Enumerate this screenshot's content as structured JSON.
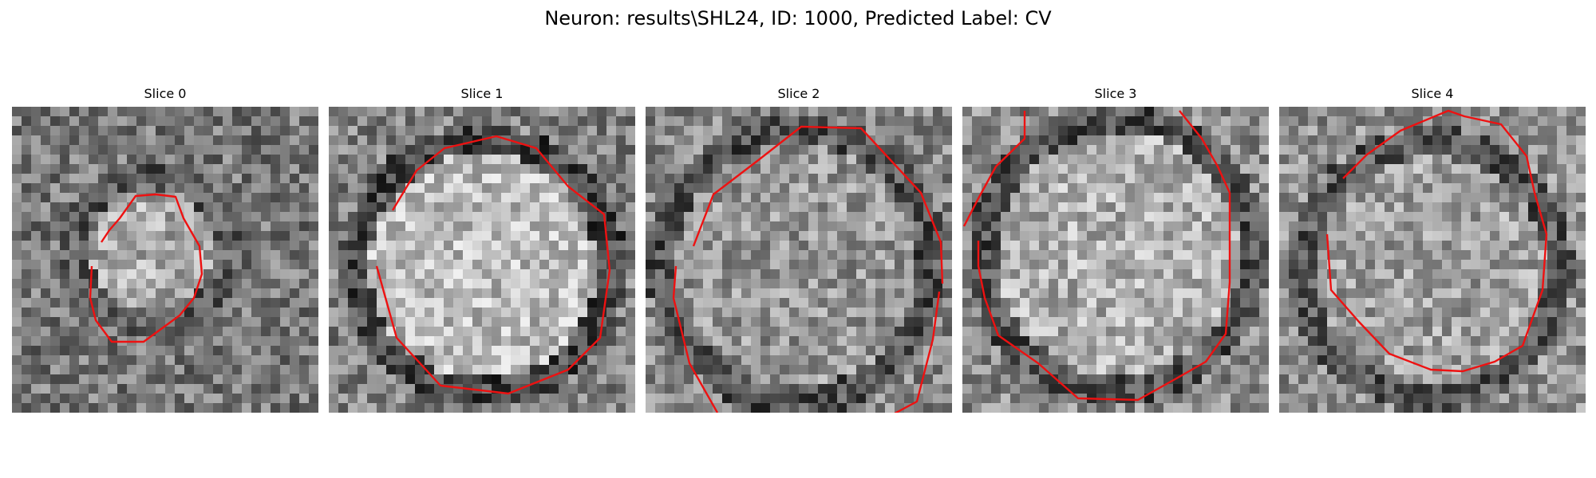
{
  "figure": {
    "title": "Neuron: results\\SHL24, ID: 1000, Predicted Label: CV",
    "contour_color": "#ee1111"
  },
  "slices": [
    {
      "title": "Slice 0"
    },
    {
      "title": "Slice 1"
    },
    {
      "title": "Slice 2"
    },
    {
      "title": "Slice 3"
    },
    {
      "title": "Slice 4"
    }
  ]
}
